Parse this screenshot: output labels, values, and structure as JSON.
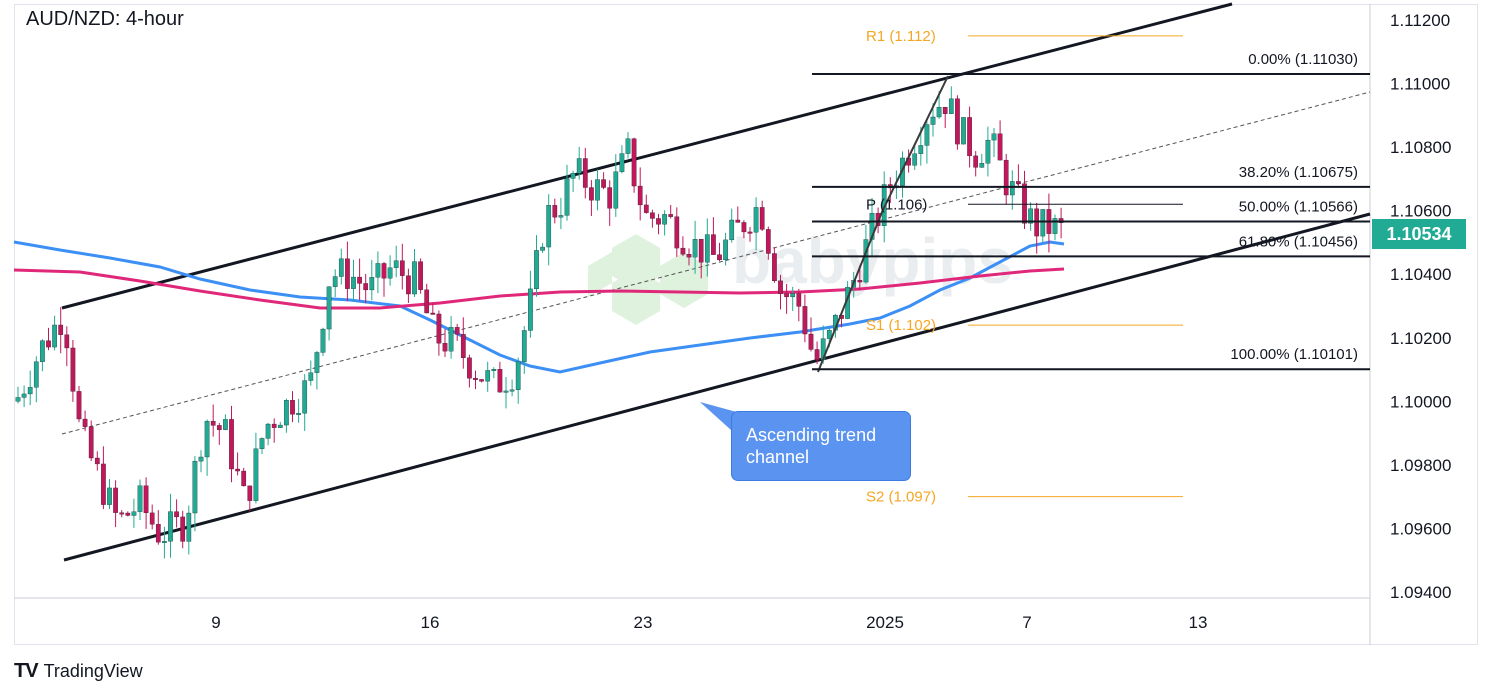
{
  "title": "AUD/NZD: 4-hour",
  "current_price": "1.10534",
  "callout": {
    "line1": "Ascending trend",
    "line2": "channel"
  },
  "watermark": "babypips",
  "footer": {
    "logo": "TV",
    "brand": "TradingView"
  },
  "colors": {
    "bull": "#22ab94",
    "bear": "#c2185b",
    "ma_blue": "#3c8ff5",
    "ma_pink": "#e0287a",
    "pivot": "#f5a623",
    "fib": "#131722",
    "price_badge": "#22ab94"
  },
  "chart_data": {
    "type": "candlestick",
    "title": "AUD/NZD: 4-hour",
    "y_ticks": [
      "1.11200",
      "1.11000",
      "1.10800",
      "1.10600",
      "1.10400",
      "1.10200",
      "1.10000",
      "1.09800",
      "1.09600",
      "1.09400"
    ],
    "x_ticks": [
      "9",
      "16",
      "23",
      "2025",
      "7",
      "13"
    ],
    "ylim": [
      1.0937,
      1.1125
    ],
    "fib_levels": [
      {
        "label": "0.00% (1.11030)",
        "value": 1.1103
      },
      {
        "label": "38.20% (1.10675)",
        "value": 1.10675
      },
      {
        "label": "50.00% (1.10566)",
        "value": 1.10566
      },
      {
        "label": "61.80% (1.10456)",
        "value": 1.10456
      },
      {
        "label": "100.00% (1.10101)",
        "value": 1.10101
      }
    ],
    "pivots": [
      {
        "label": "R1 (1.112)",
        "value": 1.1115
      },
      {
        "label": "P (1.106)",
        "value": 1.1062
      },
      {
        "label": "S1 (1.102)",
        "value": 1.1024
      },
      {
        "label": "S2 (1.097)",
        "value": 1.097
      }
    ],
    "last_price": 1.10534
  }
}
